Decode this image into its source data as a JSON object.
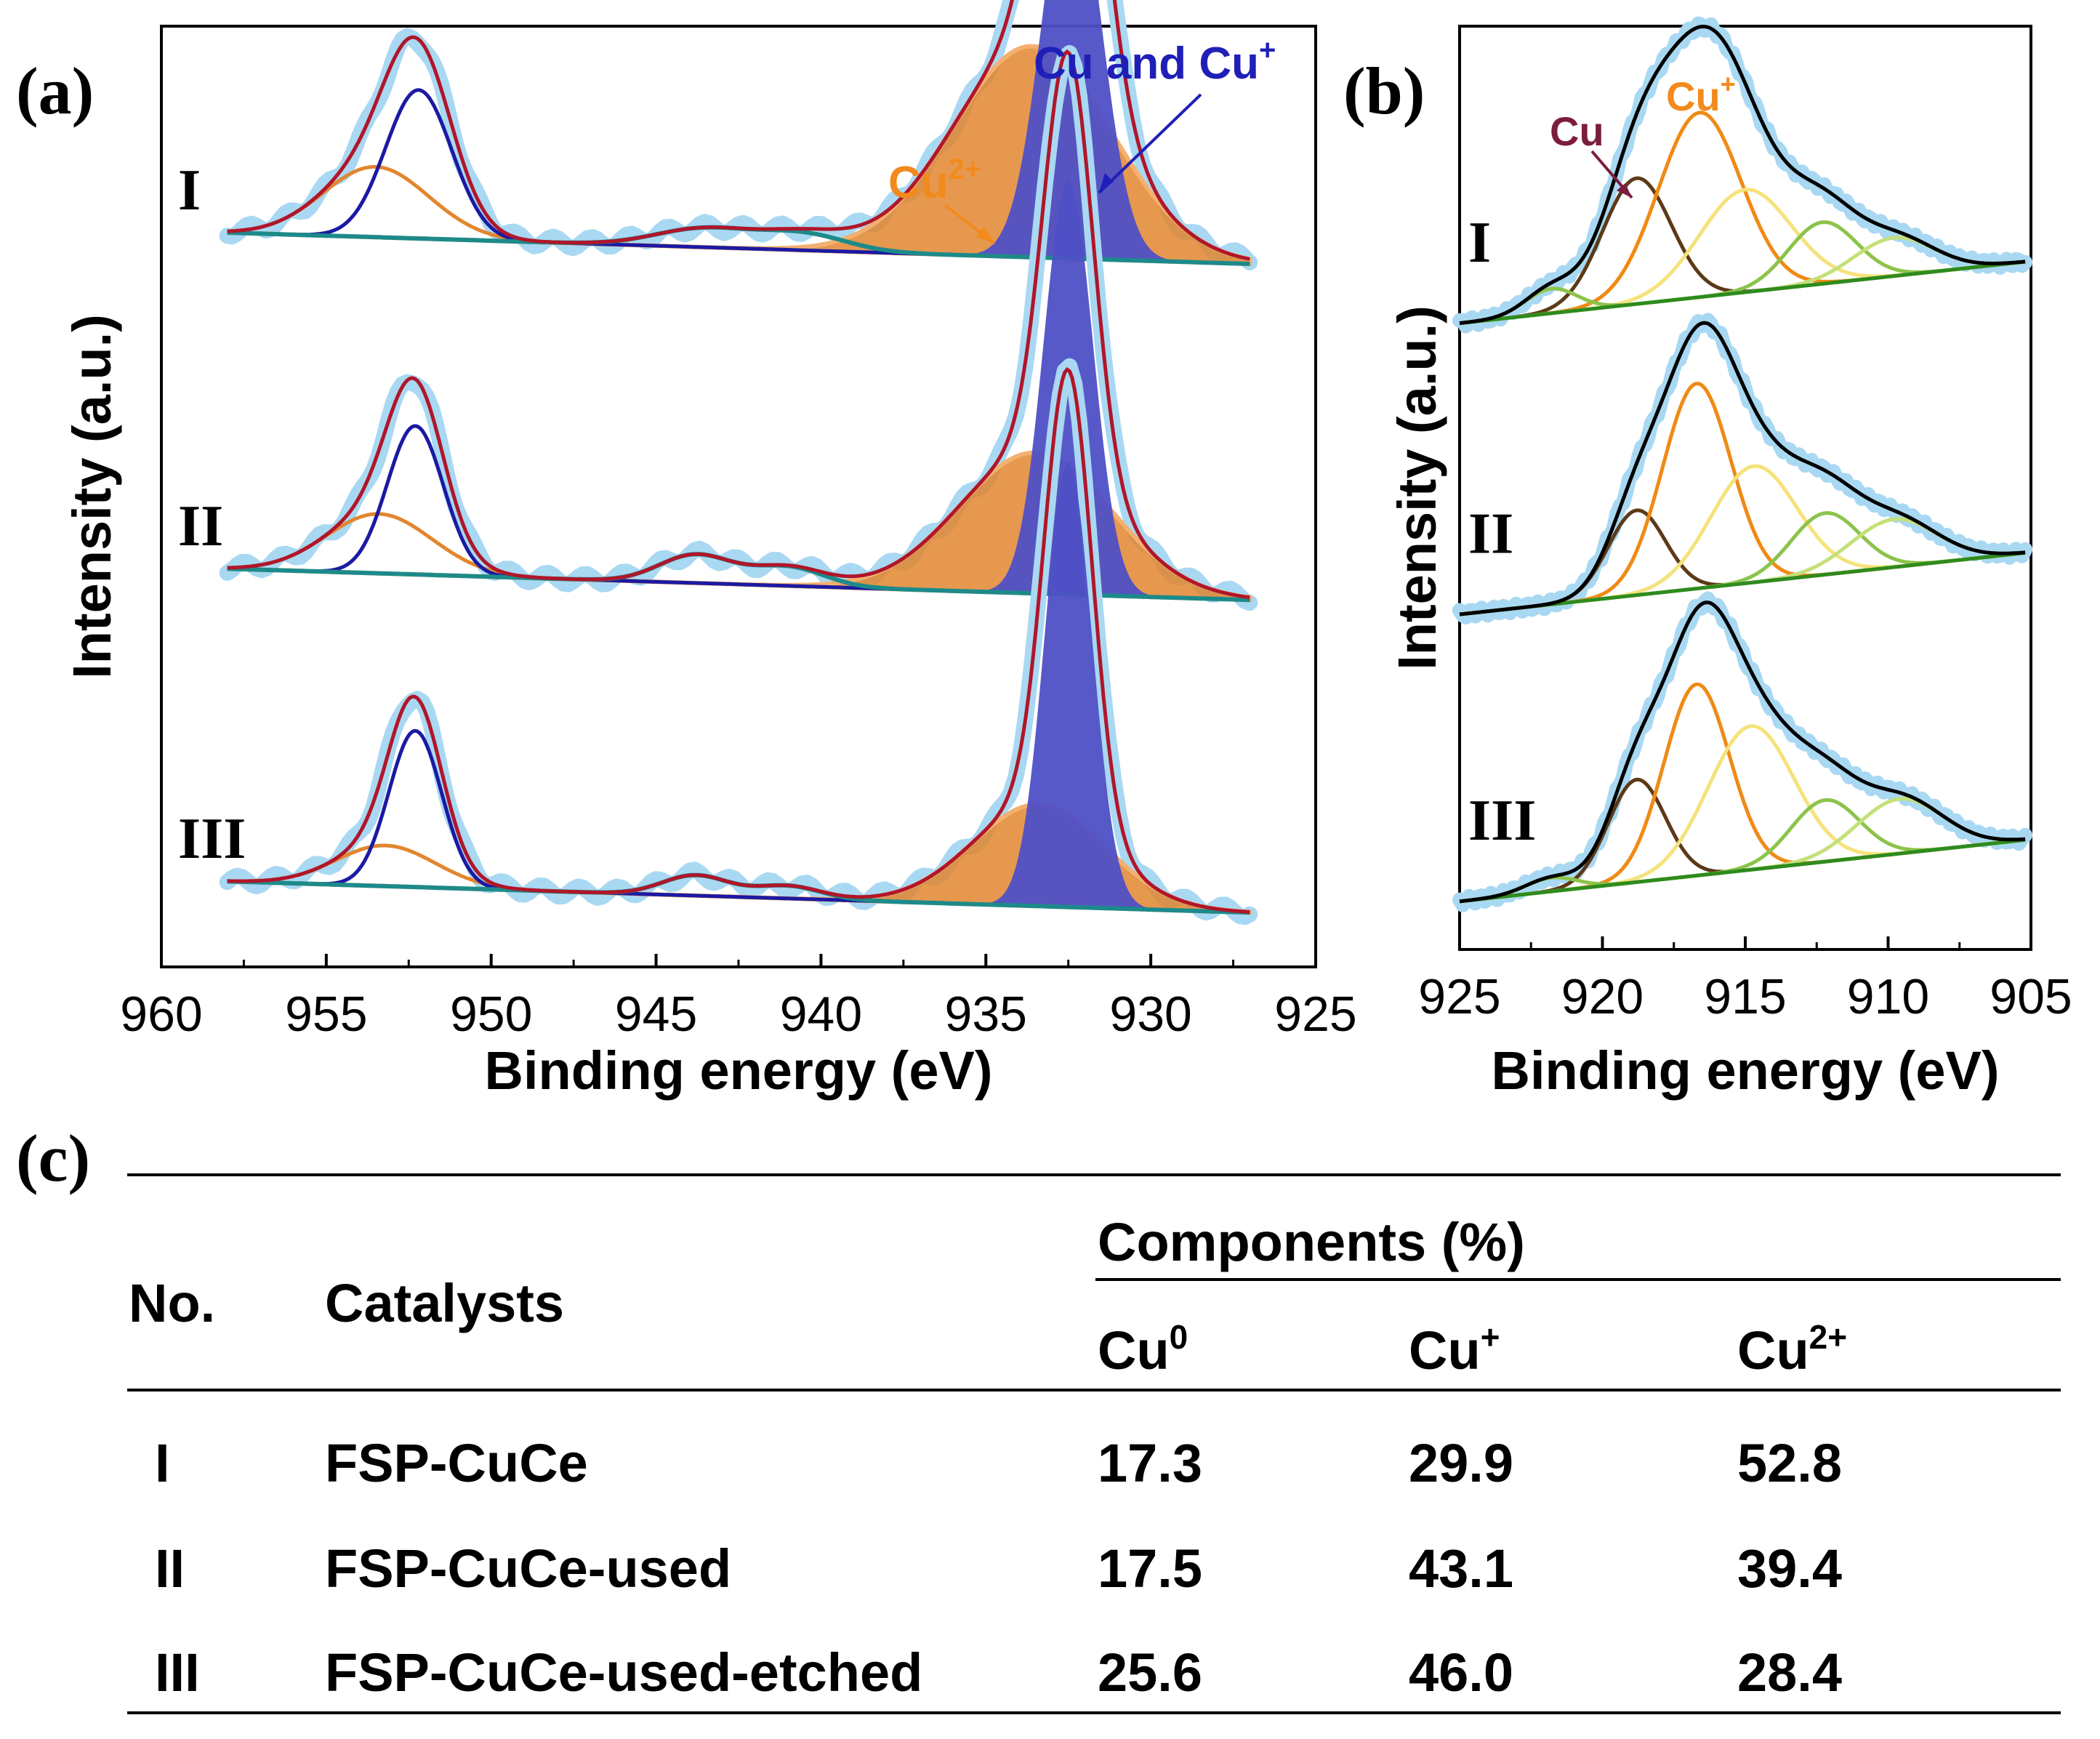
{
  "panels": {
    "a": "(a)",
    "b": "(b)",
    "c": "(c)"
  },
  "colors": {
    "data_dots": "#a9d8f2",
    "envelope_a": "#b0162a",
    "cu_cuplus_fill": "#4f50c6",
    "cu_cuplus_line": "#1a1aa3",
    "cu2plus_fill": "#e2862f",
    "cu2plus_light_fill": "#f4b070",
    "satellite": "#1d8a8a",
    "envelope_b": "#000000",
    "cu_b": "#5c3a17",
    "cuplus_b": "#f08a14",
    "yellow_b": "#f5e27a",
    "green1_b": "#8cc34b",
    "green2_b": "#c4e07a",
    "baseline_b": "#2e8b1e",
    "annot_blue": "#1f1fb8",
    "annot_orange": "#f28a1d",
    "annot_maroon": "#7b1d3d"
  },
  "chart_data": [
    {
      "panel": "a",
      "type": "line",
      "title": "",
      "xlabel": "Binding energy (eV)",
      "ylabel": "Intensity (a.u.)",
      "xlim": [
        960,
        925
      ],
      "x_ticks": [
        960,
        955,
        950,
        945,
        940,
        935,
        930,
        925
      ],
      "x_range_data": [
        958,
        927
      ],
      "sample_labels": [
        "I",
        "II",
        "III"
      ],
      "annotations": [
        {
          "text": "Cu and Cu",
          "sup": "+",
          "color": "annot_blue"
        },
        {
          "text": "Cu",
          "sup": "2+",
          "color": "annot_orange"
        }
      ],
      "series": [
        {
          "name": "I",
          "offset": 4.6,
          "main_peak": {
            "center": 932.4,
            "height": 2.5,
            "width": 0.9
          },
          "cu2_peak": {
            "center": 933.6,
            "height": 1.35,
            "width": 2.4
          },
          "doublet_peak": {
            "center": 952.2,
            "height": 0.95,
            "width": 1.0
          },
          "doublet_cu2": {
            "center": 953.5,
            "height": 0.45,
            "width": 1.6
          },
          "satellites": [
            {
              "center": 943.5,
              "height": 0.12,
              "width": 1.5
            },
            {
              "center": 940.5,
              "height": 0.1,
              "width": 1.3
            }
          ]
        },
        {
          "name": "II",
          "offset": 2.45,
          "main_peak": {
            "center": 932.5,
            "height": 2.65,
            "width": 0.75
          },
          "cu2_peak": {
            "center": 933.5,
            "height": 0.9,
            "width": 2.3
          },
          "doublet_peak": {
            "center": 952.3,
            "height": 0.95,
            "width": 0.85
          },
          "doublet_cu2": {
            "center": 953.4,
            "height": 0.38,
            "width": 1.6
          },
          "satellites": [
            {
              "center": 943.8,
              "height": 0.18,
              "width": 1.1
            },
            {
              "center": 941.0,
              "height": 0.12,
              "width": 1.1
            }
          ]
        },
        {
          "name": "III",
          "offset": 0.45,
          "main_peak": {
            "center": 932.5,
            "height": 2.85,
            "width": 0.72
          },
          "cu2_peak": {
            "center": 933.4,
            "height": 0.65,
            "width": 2.0
          },
          "doublet_peak": {
            "center": 952.3,
            "height": 1.0,
            "width": 0.8
          },
          "doublet_cu2": {
            "center": 953.2,
            "height": 0.26,
            "width": 1.5
          },
          "satellites": [
            {
              "center": 943.8,
              "height": 0.13,
              "width": 1.0
            },
            {
              "center": 941.0,
              "height": 0.08,
              "width": 1.0
            }
          ]
        }
      ]
    },
    {
      "panel": "b",
      "type": "line",
      "title": "",
      "xlabel": "Binding energy (eV)",
      "ylabel": "Intensity (a.u.)",
      "xlim": [
        925,
        905
      ],
      "x_ticks": [
        925,
        920,
        915,
        910,
        905
      ],
      "x_range_data": [
        925,
        905.2
      ],
      "sample_labels": [
        "I",
        "II",
        "III"
      ],
      "annotations": [
        {
          "text": "Cu",
          "sup": "",
          "color": "annot_maroon"
        },
        {
          "text": "Cu",
          "sup": "+",
          "color": "annot_orange"
        }
      ],
      "series": [
        {
          "name": "I",
          "offset": 4.55,
          "components": [
            {
              "label": "Cu",
              "center": 918.8,
              "height": 0.92,
              "width": 1.2,
              "color": "cu_b"
            },
            {
              "label": "Cu+",
              "center": 916.6,
              "height": 1.35,
              "width": 1.45,
              "color": "cuplus_b"
            },
            {
              "label": "yellow",
              "center": 915.0,
              "height": 0.75,
              "width": 1.6,
              "color": "yellow_b"
            },
            {
              "label": "green",
              "center": 912.3,
              "height": 0.45,
              "width": 1.2,
              "color": "green1_b"
            },
            {
              "label": "lightgreen",
              "center": 909.8,
              "height": 0.28,
              "width": 1.4,
              "color": "green2_b"
            },
            {
              "label": "small",
              "center": 921.8,
              "height": 0.18,
              "width": 0.9,
              "color": "green1_b"
            }
          ]
        },
        {
          "name": "II",
          "offset": 2.42,
          "components": [
            {
              "label": "Cu",
              "center": 918.8,
              "height": 0.62,
              "width": 1.0,
              "color": "cu_b"
            },
            {
              "label": "Cu+",
              "center": 916.7,
              "height": 1.5,
              "width": 1.2,
              "color": "cuplus_b"
            },
            {
              "label": "yellow",
              "center": 914.7,
              "height": 0.85,
              "width": 1.5,
              "color": "yellow_b"
            },
            {
              "label": "green",
              "center": 912.2,
              "height": 0.45,
              "width": 1.2,
              "color": "green1_b"
            },
            {
              "label": "lightgreen",
              "center": 909.8,
              "height": 0.35,
              "width": 1.5,
              "color": "green2_b"
            }
          ]
        },
        {
          "name": "III",
          "offset": 0.32,
          "components": [
            {
              "label": "Cu",
              "center": 918.8,
              "height": 0.75,
              "width": 1.0,
              "color": "cu_b"
            },
            {
              "label": "Cu+",
              "center": 916.7,
              "height": 1.4,
              "width": 1.15,
              "color": "cuplus_b"
            },
            {
              "label": "yellow",
              "center": 914.8,
              "height": 1.05,
              "width": 1.5,
              "color": "yellow_b"
            },
            {
              "label": "green",
              "center": 912.2,
              "height": 0.45,
              "width": 1.2,
              "color": "green1_b"
            },
            {
              "label": "lightgreen",
              "center": 909.6,
              "height": 0.4,
              "width": 1.5,
              "color": "green2_b"
            },
            {
              "label": "small",
              "center": 921.8,
              "height": 0.1,
              "width": 0.9,
              "color": "green1_b"
            }
          ]
        }
      ]
    },
    {
      "panel": "c",
      "type": "table",
      "headers": {
        "no": "No.",
        "catalysts": "Catalysts",
        "components": "Components (%)",
        "cu0": {
          "base": "Cu",
          "sup": "0"
        },
        "cuplus": {
          "base": "Cu",
          "sup": "+"
        },
        "cu2plus": {
          "base": "Cu",
          "sup": "2+"
        }
      },
      "rows": [
        {
          "no": "I",
          "catalyst": "FSP-CuCe",
          "cu0": "17.3",
          "cuplus": "29.9",
          "cu2plus": "52.8"
        },
        {
          "no": "II",
          "catalyst": "FSP-CuCe-used",
          "cu0": "17.5",
          "cuplus": "43.1",
          "cu2plus": "39.4"
        },
        {
          "no": "III",
          "catalyst": "FSP-CuCe-used-etched",
          "cu0": "25.6",
          "cuplus": "46.0",
          "cu2plus": "28.4"
        }
      ]
    }
  ]
}
